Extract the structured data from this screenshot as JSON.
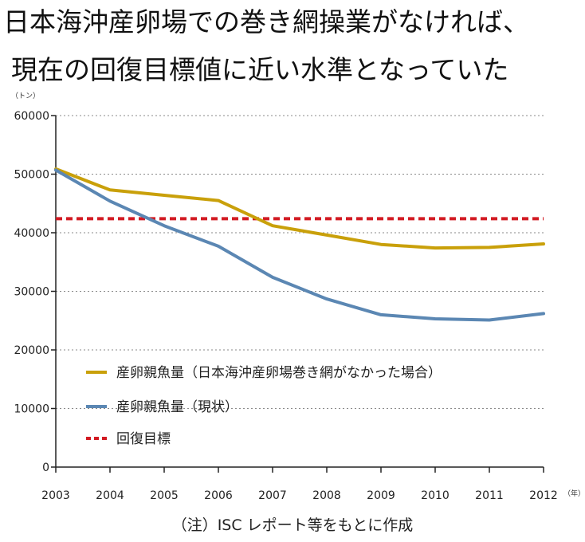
{
  "title_line1": "日本海沖産卵場での巻き網操業がなければ、",
  "title_line2": "現在の回復目標値に近い水準となっていた",
  "note": "（注）ISC レポート等をもとに作成",
  "chart_data": {
    "type": "line",
    "y_unit_label": "（トン）",
    "x_unit_label": "（年）",
    "x": [
      2003,
      2004,
      2005,
      2006,
      2007,
      2008,
      2009,
      2010,
      2011,
      2012
    ],
    "x_tick_labels": [
      "2003",
      "2004",
      "2005",
      "2006",
      "2007",
      "2008",
      "2009",
      "2010",
      "2011",
      "2012"
    ],
    "ylim": [
      0,
      60000
    ],
    "y_ticks": [
      0,
      10000,
      20000,
      30000,
      40000,
      50000,
      60000
    ],
    "y_tick_labels": [
      "0",
      "10000",
      "20000",
      "30000",
      "40000",
      "50000",
      "60000"
    ],
    "grid": "horizontal dotted",
    "legend_placement": "lower-left inside plot",
    "series": [
      {
        "name": "産卵親魚量（日本海沖産卵場巻き網がなかった場合）",
        "color": "#c9a00a",
        "style": "solid",
        "values": [
          50900,
          47300,
          46400,
          45500,
          41200,
          39600,
          38000,
          37400,
          37500,
          38100
        ]
      },
      {
        "name": "産卵親魚量（現状）",
        "color": "#5b87b3",
        "style": "solid",
        "values": [
          50700,
          45400,
          41200,
          37700,
          32400,
          28700,
          26000,
          25300,
          25100,
          26200
        ]
      },
      {
        "name": "回復目標",
        "color": "#d21a22",
        "style": "dashed",
        "values": [
          42400,
          42400,
          42400,
          42400,
          42400,
          42400,
          42400,
          42400,
          42400,
          42400
        ]
      }
    ]
  }
}
